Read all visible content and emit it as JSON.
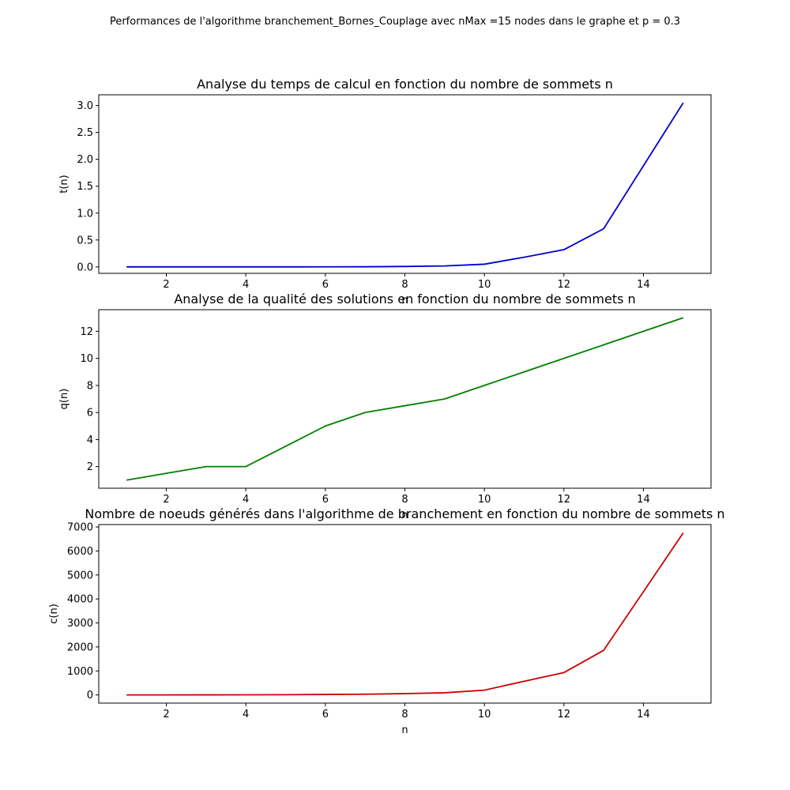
{
  "suptitle": "Performances de l'algorithme branchement_Bornes_Couplage avec nMax =15 nodes dans le graphe et p = 0.3",
  "chart_data": [
    {
      "type": "line",
      "title": "Analyse du temps de calcul en fonction du nombre de sommets n",
      "xlabel": "n",
      "ylabel": "t(n)",
      "color": "#0000cc",
      "x": [
        1,
        2,
        3,
        4,
        5,
        6,
        7,
        8,
        9,
        10,
        11,
        12,
        13,
        14,
        15
      ],
      "y": [
        0.0,
        0.0,
        0.0,
        0.0,
        0.0,
        0.001,
        0.002,
        0.008,
        0.018,
        0.05,
        0.18,
        0.32,
        0.71,
        1.88,
        3.05
      ],
      "xlim": [
        0.3,
        15.7
      ],
      "ylim": [
        -0.12,
        3.2
      ],
      "xticks": [
        2,
        4,
        6,
        8,
        10,
        12,
        14
      ],
      "yticks": [
        0.0,
        0.5,
        1.0,
        1.5,
        2.0,
        2.5,
        3.0
      ],
      "yticklabels": [
        "0.0",
        "0.5",
        "1.0",
        "1.5",
        "2.0",
        "2.5",
        "3.0"
      ]
    },
    {
      "type": "line",
      "title": "Analyse de la qualité des solutions en fonction du nombre de sommets n",
      "xlabel": "n",
      "ylabel": "q(n)",
      "color": "#008000",
      "x": [
        1,
        2,
        3,
        4,
        5,
        6,
        7,
        8,
        9,
        10,
        11,
        12,
        13,
        14,
        15
      ],
      "y": [
        1,
        1.5,
        2,
        2,
        3.5,
        5,
        6,
        6.5,
        7,
        8,
        9,
        10,
        11,
        12,
        13
      ],
      "xlim": [
        0.3,
        15.7
      ],
      "ylim": [
        0.4,
        13.6
      ],
      "xticks": [
        2,
        4,
        6,
        8,
        10,
        12,
        14
      ],
      "yticks": [
        2,
        4,
        6,
        8,
        10,
        12
      ],
      "yticklabels": [
        "2",
        "4",
        "6",
        "8",
        "10",
        "12"
      ]
    },
    {
      "type": "line",
      "title": "Nombre de noeuds générés dans l'algorithme de branchement en fonction du nombre de sommets n",
      "xlabel": "n",
      "ylabel": "c(n)",
      "color": "#cc0000",
      "x": [
        1,
        2,
        3,
        4,
        5,
        6,
        7,
        8,
        9,
        10,
        11,
        12,
        13,
        14,
        15
      ],
      "y": [
        1,
        2,
        3,
        5,
        10,
        20,
        30,
        55,
        90,
        200,
        570,
        930,
        1860,
        4300,
        6750
      ],
      "xlim": [
        0.3,
        15.7
      ],
      "ylim": [
        -340,
        7100
      ],
      "xticks": [
        2,
        4,
        6,
        8,
        10,
        12,
        14
      ],
      "yticks": [
        0,
        1000,
        2000,
        3000,
        4000,
        5000,
        6000,
        7000
      ],
      "yticklabels": [
        "0",
        "1000",
        "2000",
        "3000",
        "4000",
        "5000",
        "6000",
        "7000"
      ]
    }
  ]
}
